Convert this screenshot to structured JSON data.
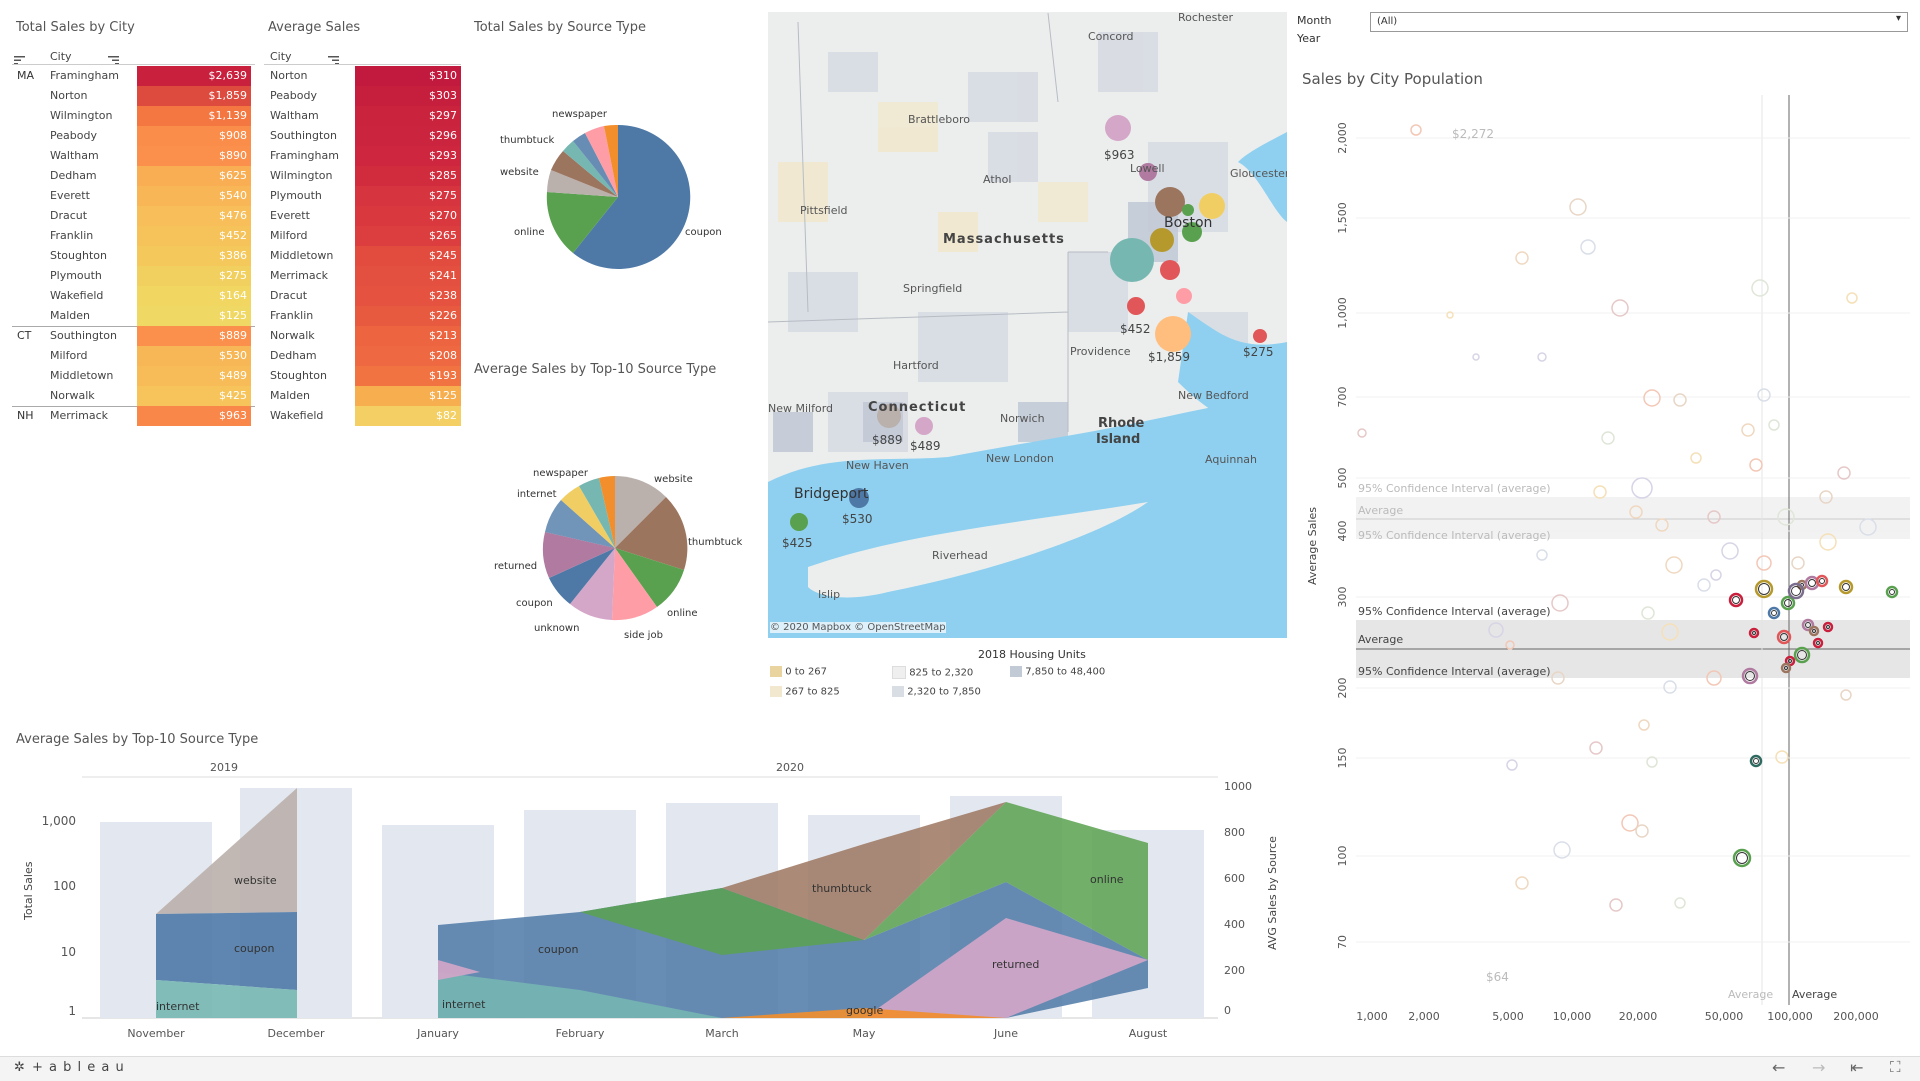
{
  "filter": {
    "label1": "Month",
    "label2": "Year",
    "value": "(All)"
  },
  "total_sales": {
    "title": "Total Sales by City",
    "col_header": "City",
    "groups": [
      {
        "state": "MA",
        "rows": [
          [
            "Framingham",
            "$2,639",
            "#c8203d"
          ],
          [
            "Norton",
            "$1,859",
            "#dd4a3e"
          ],
          [
            "Wilmington",
            "$1,139",
            "#f47640"
          ],
          [
            "Peabody",
            "$908",
            "#fb8d4b"
          ],
          [
            "Waltham",
            "$890",
            "#fb904c"
          ],
          [
            "Dedham",
            "$625",
            "#f9ae54"
          ],
          [
            "Everett",
            "$540",
            "#f8b656"
          ],
          [
            "Dracut",
            "$476",
            "#f7be59"
          ],
          [
            "Franklin",
            "$452",
            "#f6c25a"
          ],
          [
            "Stoughton",
            "$386",
            "#f5c85c"
          ],
          [
            "Plymouth",
            "$275",
            "#f2d060"
          ],
          [
            "Wakefield",
            "$164",
            "#f1d662"
          ],
          [
            "Malden",
            "$125",
            "#f0d864"
          ]
        ]
      },
      {
        "state": "CT",
        "rows": [
          [
            "Southington",
            "$889",
            "#fb904c"
          ],
          [
            "Milford",
            "$530",
            "#f8b756"
          ],
          [
            "Middletown",
            "$489",
            "#f7bc58"
          ],
          [
            "Norwalk",
            "$425",
            "#f6c45b"
          ]
        ]
      },
      {
        "state": "NH",
        "rows": [
          [
            "Merrimack",
            "$963",
            "#fa874a"
          ]
        ]
      }
    ]
  },
  "avg_sales": {
    "title": "Average Sales",
    "col_header": "City",
    "rows": [
      [
        "Norton",
        "$310",
        "#c21a3e"
      ],
      [
        "Peabody",
        "$303",
        "#c61f3e"
      ],
      [
        "Waltham",
        "$297",
        "#ca233e"
      ],
      [
        "Southington",
        "$296",
        "#cb243e"
      ],
      [
        "Framingham",
        "$293",
        "#cd263e"
      ],
      [
        "Wilmington",
        "$285",
        "#d12c3e"
      ],
      [
        "Plymouth",
        "$275",
        "#d6343e"
      ],
      [
        "Everett",
        "$270",
        "#d9393e"
      ],
      [
        "Milford",
        "$265",
        "#dc3d3e"
      ],
      [
        "Middletown",
        "$245",
        "#e24c3f"
      ],
      [
        "Merrimack",
        "$241",
        "#e4503f"
      ],
      [
        "Dracut",
        "$238",
        "#e5523f"
      ],
      [
        "Franklin",
        "$226",
        "#e85a40"
      ],
      [
        "Norwalk",
        "$213",
        "#ec6440"
      ],
      [
        "Dedham",
        "$208",
        "#ee6841"
      ],
      [
        "Stoughton",
        "$193",
        "#f27342"
      ],
      [
        "Malden",
        "$125",
        "#f7ae4e"
      ],
      [
        "Wakefield",
        "$82",
        "#f4d064"
      ]
    ]
  },
  "pie1": {
    "title": "Total Sales by Source Type",
    "labels": [
      "coupon",
      "online",
      "website",
      "thumbtuck",
      "newspaper"
    ]
  },
  "pie2": {
    "title": "Average Sales by Top-10 Source Type",
    "labels": [
      "website",
      "thumbtuck",
      "online",
      "side job",
      "unknown",
      "coupon",
      "returned",
      "internet",
      "newspaper"
    ]
  },
  "map": {
    "places": [
      "Rochester",
      "Concord",
      "Brattleboro",
      "Athol",
      "Lowell",
      "Gloucester",
      "Pittsfield",
      "Massachusetts",
      "Boston",
      "Springfield",
      "Providence",
      "New Bedford",
      "Hartford",
      "Connecticut",
      "Norwich",
      "Rhode",
      "Island",
      "New Milford",
      "New Haven",
      "New London",
      "Aquinnah",
      "Bridgeport",
      "Riverhead",
      "Islip"
    ],
    "values": [
      "$963",
      "$452",
      "$1,859",
      "$275",
      "$889",
      "$489",
      "$530",
      "$425"
    ],
    "credit": "© 2020 Mapbox © OpenStreetMap",
    "legend_title": "2018 Housing Units",
    "legend": [
      [
        "0 to 267",
        "#e9d49f"
      ],
      [
        "267 to 825",
        "#f1e8cf"
      ],
      [
        "825 to 2,320",
        "#efefef"
      ],
      [
        "2,320 to 7,850",
        "#d9dee4"
      ],
      [
        "7,850 to 48,400",
        "#c2cad6"
      ]
    ]
  },
  "scatter": {
    "title": "Sales by City Population",
    "ylabel": "Average Sales",
    "yticks": [
      "2,000",
      "1,500",
      "1,000",
      "700",
      "500",
      "400",
      "300",
      "200",
      "150",
      "100",
      "70"
    ],
    "xticks": [
      "1,000",
      "2,000",
      "5,000",
      "10,000",
      "20,000",
      "50,000",
      "100,000",
      "200,000"
    ],
    "annot_top": "$2,272",
    "annot_bottom": "$64",
    "ci": "95% Confidence Interval (average)",
    "avg": "Average"
  },
  "bottom": {
    "title": "Average Sales by Top-10 Source Type",
    "years": [
      "2019",
      "2020"
    ],
    "months": [
      "November",
      "December",
      "January",
      "February",
      "March",
      "May",
      "June",
      "August"
    ],
    "yleft_label": "Total Sales",
    "yleft_ticks": [
      "1,000",
      "100",
      "10",
      "1"
    ],
    "yright_label": "AVG Sales by Source",
    "yright_ticks": [
      "1000",
      "800",
      "600",
      "400",
      "200",
      "0"
    ],
    "area_labels": [
      "website",
      "coupon",
      "internet",
      "coupon",
      "internet",
      "thumbtuck",
      "online",
      "returned",
      "google"
    ]
  },
  "footer": {
    "brand": "+ a b l e a u"
  }
}
